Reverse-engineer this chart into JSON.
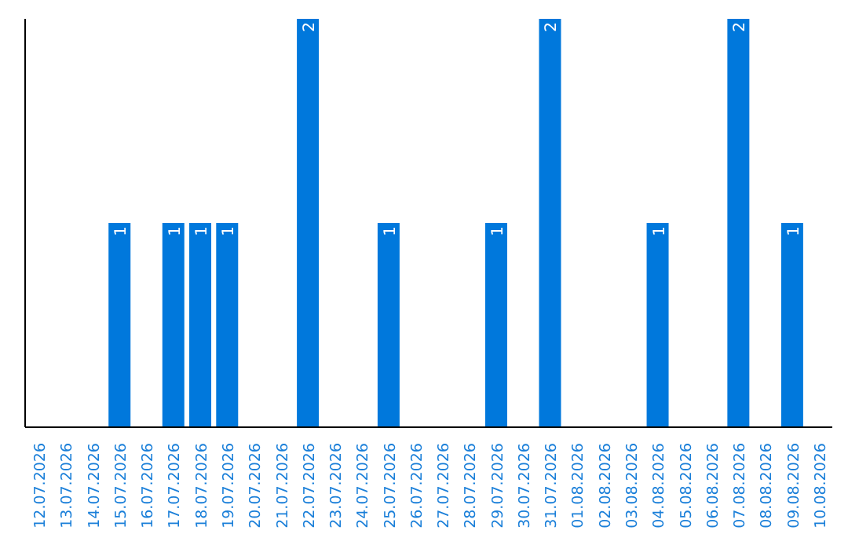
{
  "chart_data": {
    "type": "bar",
    "categories": [
      "12.07.2026",
      "13.07.2026",
      "14.07.2026",
      "15.07.2026",
      "16.07.2026",
      "17.07.2026",
      "18.07.2026",
      "19.07.2026",
      "20.07.2026",
      "21.07.2026",
      "22.07.2026",
      "23.07.2026",
      "24.07.2026",
      "25.07.2026",
      "26.07.2026",
      "27.07.2026",
      "28.07.2026",
      "29.07.2026",
      "30.07.2026",
      "31.07.2026",
      "01.08.2026",
      "02.08.2026",
      "03.08.2026",
      "04.08.2026",
      "05.08.2026",
      "06.08.2026",
      "07.08.2026",
      "08.08.2026",
      "09.08.2026",
      "10.08.2026"
    ],
    "values": [
      0,
      0,
      0,
      1,
      0,
      1,
      1,
      1,
      0,
      0,
      2,
      0,
      0,
      1,
      0,
      0,
      0,
      1,
      0,
      2,
      0,
      0,
      0,
      1,
      0,
      0,
      2,
      0,
      1,
      0
    ],
    "value_labels": [
      null,
      null,
      null,
      "1",
      null,
      "1",
      "1",
      "1",
      null,
      null,
      "2",
      null,
      null,
      "1",
      null,
      null,
      null,
      "1",
      null,
      "2",
      null,
      null,
      null,
      "1",
      null,
      null,
      "2",
      null,
      "1",
      null
    ],
    "color": "#0078dc",
    "ylim": [
      0,
      2
    ],
    "tick_labels": "x",
    "grid": false
  }
}
